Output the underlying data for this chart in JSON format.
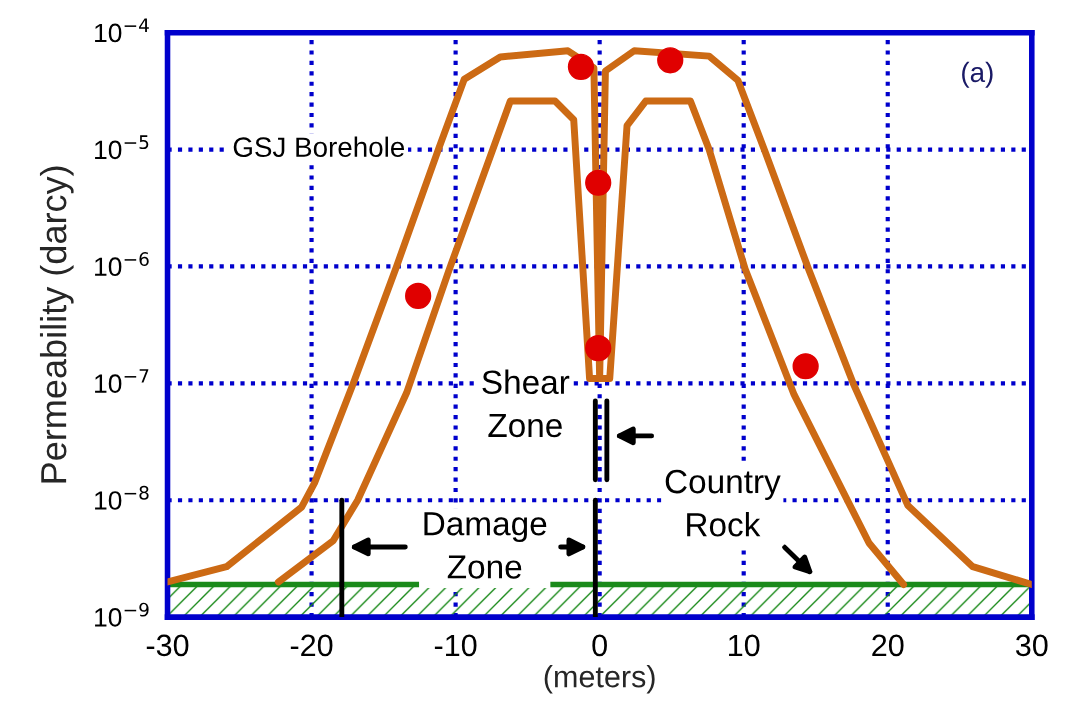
{
  "chart_data": {
    "type": "line",
    "xlabel": "(meters)",
    "ylabel": "Permeability (darcy)",
    "log": "y",
    "xlim": [
      -30,
      30
    ],
    "xticks": [
      -30,
      -20,
      -10,
      0,
      10,
      20,
      30
    ],
    "ylim": [
      1e-09,
      0.0001
    ],
    "yticks": [
      {
        "value": 1e-09,
        "label": "10$^{−9}$"
      },
      {
        "value": 1e-08,
        "label": "10$^{−8}$"
      },
      {
        "value": 1e-07,
        "label": "10$^{−7}$"
      },
      {
        "value": 1e-06,
        "label": "10$^{−6}$"
      },
      {
        "value": 1e-05,
        "label": "10$^{−5}$"
      },
      {
        "value": 0.0001,
        "label": "10$^{−4}$"
      }
    ],
    "grid": true,
    "series": [
      {
        "color": "#cc6a14",
        "x": [
          -30,
          -25.9,
          -20.7,
          -19.8,
          -17.1,
          -14.1,
          -11.2,
          -9.4,
          -6.9,
          -2.2,
          -0.4,
          0,
          0.4,
          2.4,
          7.6,
          9.6,
          11.5,
          14.5,
          17.6,
          21.4,
          25.9,
          30
        ],
        "values": [
          2e-09,
          2.7e-09,
          8.7e-09,
          1.4e-08,
          1e-07,
          1e-06,
          1e-05,
          4e-05,
          6.2e-05,
          7e-05,
          5e-05,
          1.1e-07,
          4.7e-05,
          7e-05,
          6.3e-05,
          3.9e-05,
          9.5e-06,
          9.5e-07,
          1e-07,
          9e-09,
          2.7e-09,
          1.9e-09
        ]
      },
      {
        "color": "#cc6a14",
        "x": [
          -22.3,
          -18.5,
          -16.8,
          -13.4,
          -10.5,
          -6.2,
          -3.1,
          -1.8,
          -0.7,
          0.7,
          1.9,
          3.2,
          6.3,
          7.6,
          10.1,
          13.5,
          18.7,
          21.1
        ],
        "values": [
          2e-09,
          4.5e-09,
          1e-08,
          8.3e-08,
          9e-07,
          2.6e-05,
          2.6e-05,
          1.8e-05,
          1.1e-07,
          1.1e-07,
          1.6e-05,
          2.6e-05,
          2.6e-05,
          1e-05,
          9.5e-07,
          8e-08,
          4.3e-09,
          1.9e-09
        ]
      },
      {
        "type": "scatter",
        "color": "#e00000",
        "marker": "circle",
        "x": [
          -12.6,
          -1.3,
          -0.1,
          -0.1,
          4.9,
          14.3
        ],
        "values": [
          5.6e-07,
          5.1e-05,
          5.2e-06,
          2e-07,
          5.8e-05,
          1.4e-07
        ]
      }
    ],
    "ref_lines": [
      {
        "axis": "y",
        "value": 1.9e-09,
        "color": "#1a8a1a"
      }
    ],
    "bands": [
      {
        "axis": "y",
        "from": 1e-09,
        "to": 1.9e-09,
        "color": "#1a8a1a"
      }
    ],
    "annotations": [
      "GSJ Borehole",
      "(a)",
      "Shear\nZone",
      "Damage\nZone",
      "Country\nRock"
    ]
  }
}
